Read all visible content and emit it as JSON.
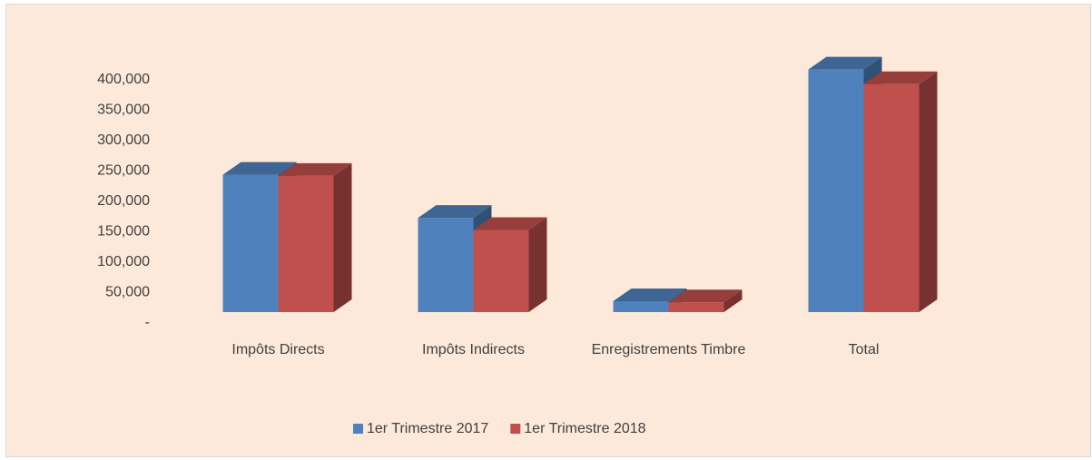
{
  "chart_data": {
    "type": "bar3d",
    "categories": [
      "Impôts Directs",
      "Impôts Indirects",
      "Enregistrements Timbre",
      "Total"
    ],
    "series": [
      {
        "name": "1er Trimestre 2017",
        "color": "#4f81bd",
        "values": [
          226000,
          155000,
          18000,
          399000
        ]
      },
      {
        "name": "1er Trimestre 2018",
        "color": "#c0504d",
        "values": [
          224000,
          135000,
          16000,
          375000
        ]
      }
    ],
    "ylim": [
      0,
      400000
    ],
    "yticks": [
      {
        "value": 0,
        "label": "-"
      },
      {
        "value": 50000,
        "label": "50,000"
      },
      {
        "value": 100000,
        "label": "100,000"
      },
      {
        "value": 150000,
        "label": "150,000"
      },
      {
        "value": 200000,
        "label": "200,000"
      },
      {
        "value": 250000,
        "label": "250,000"
      },
      {
        "value": 300000,
        "label": "300,000"
      },
      {
        "value": 350000,
        "label": "350,000"
      },
      {
        "value": 400000,
        "label": "400,000"
      }
    ],
    "legend": "bottom"
  }
}
